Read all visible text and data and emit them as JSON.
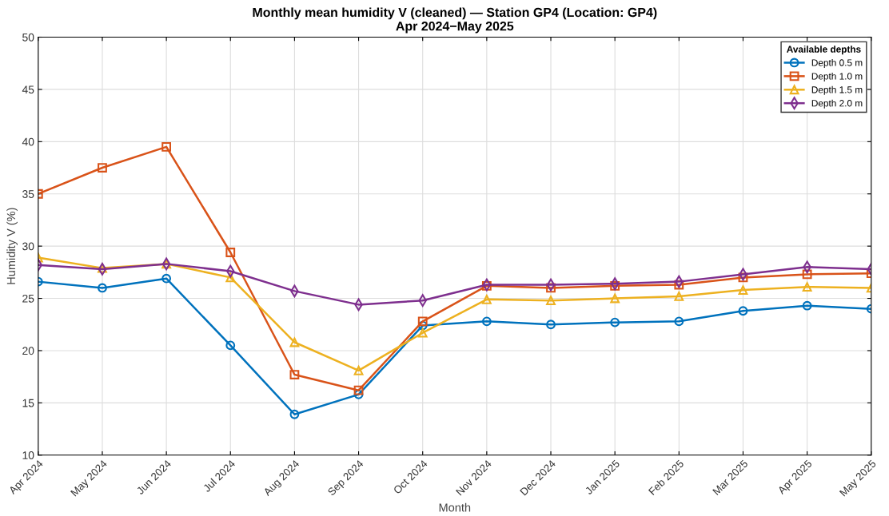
{
  "chart_data": {
    "type": "line",
    "title": "Monthly mean humidity V (cleaned) — Station GP4 (Location: GP4)\nApr 2024−May 2025",
    "xlabel": "Month",
    "ylabel": "Humidity V (%)",
    "legend_title": "Available depths",
    "categories": [
      "Apr 2024",
      "May 2024",
      "Jun 2024",
      "Jul 2024",
      "Aug 2024",
      "Sep 2024",
      "Oct 2024",
      "Nov 2024",
      "Dec 2024",
      "Jan 2025",
      "Feb 2025",
      "Mar 2025",
      "Apr 2025",
      "May 2025"
    ],
    "series": [
      {
        "name": "Depth 0.5 m",
        "color": "#0072bd",
        "marker": "circle",
        "values": [
          26.6,
          26.0,
          26.9,
          20.5,
          13.9,
          15.8,
          22.4,
          22.8,
          22.5,
          22.7,
          22.8,
          23.8,
          24.3,
          24.0
        ]
      },
      {
        "name": "Depth 1.0 m",
        "color": "#d95319",
        "marker": "square",
        "values": [
          35.0,
          37.5,
          39.5,
          29.4,
          17.7,
          16.2,
          22.8,
          26.2,
          26.0,
          26.2,
          26.3,
          27.0,
          27.3,
          27.4
        ]
      },
      {
        "name": "Depth 1.5 m",
        "color": "#edb120",
        "marker": "triangle",
        "values": [
          28.9,
          27.9,
          28.3,
          27.0,
          20.8,
          18.1,
          21.7,
          24.9,
          24.8,
          25.0,
          25.2,
          25.8,
          26.1,
          26.0
        ]
      },
      {
        "name": "Depth 2.0 m",
        "color": "#7e2f8e",
        "marker": "diamond",
        "values": [
          28.2,
          27.8,
          28.3,
          27.6,
          25.7,
          24.4,
          24.8,
          26.3,
          26.3,
          26.4,
          26.6,
          27.3,
          28.0,
          27.8
        ]
      }
    ],
    "ylim": [
      10,
      50
    ],
    "yticks": [
      10,
      15,
      20,
      25,
      30,
      35,
      40,
      45,
      50
    ],
    "grid": true,
    "legend": "top right",
    "line_style": "solid"
  }
}
